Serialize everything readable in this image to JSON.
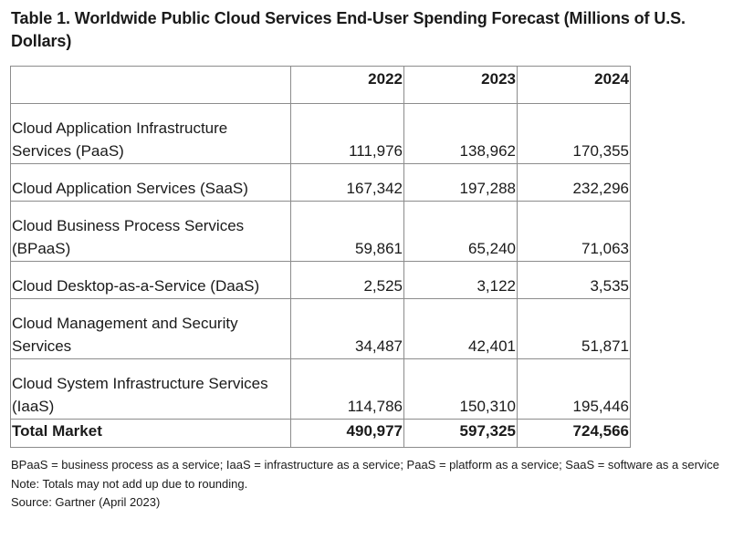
{
  "title": "Table 1. Worldwide Public Cloud Services End-User Spending Forecast (Millions of U.S. Dollars)",
  "table": {
    "headers": [
      "",
      "2022",
      "2023",
      "2024"
    ],
    "rows": [
      {
        "label": "Cloud Application Infrastructure Services (PaaS)",
        "values": [
          "111,976",
          "138,962",
          "170,355"
        ]
      },
      {
        "label": "Cloud Application Services (SaaS)",
        "values": [
          "167,342",
          "197,288",
          "232,296"
        ]
      },
      {
        "label": "Cloud Business Process Services (BPaaS)",
        "values": [
          "59,861",
          "65,240",
          "71,063"
        ]
      },
      {
        "label": "Cloud Desktop-as-a-Service (DaaS)",
        "values": [
          "2,525",
          "3,122",
          "3,535"
        ]
      },
      {
        "label": "Cloud Management and Security Services",
        "values": [
          "34,487",
          "42,401",
          "51,871"
        ]
      },
      {
        "label": "Cloud System Infrastructure Services (IaaS)",
        "values": [
          "114,786",
          "150,310",
          "195,446"
        ]
      }
    ],
    "total": {
      "label": "Total Market",
      "values": [
        "490,977",
        "597,325",
        "724,566"
      ]
    }
  },
  "notes": {
    "abbreviations": "BPaaS = business process as a service; IaaS = infrastructure as a service; PaaS = platform as a service; SaaS = software as a service",
    "rounding": "Note: Totals may not add up due to rounding.",
    "source": "Source: Gartner (April 2023)"
  }
}
